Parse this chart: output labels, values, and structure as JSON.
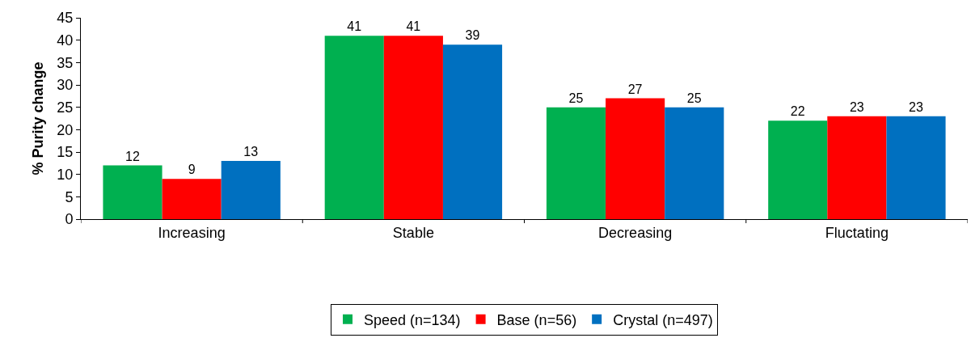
{
  "chart_data": {
    "type": "bar",
    "ylabel": "% Purity change",
    "categories": [
      "Increasing",
      "Stable",
      "Decreasing",
      "Fluctating"
    ],
    "series": [
      {
        "name": "Speed (n=134)",
        "color": "#00b050",
        "values": [
          12,
          41,
          25,
          22
        ]
      },
      {
        "name": "Base (n=56)",
        "color": "#ff0000",
        "values": [
          9,
          41,
          27,
          23
        ]
      },
      {
        "name": "Crystal (n=497)",
        "color": "#0070c0",
        "values": [
          13,
          39,
          25,
          23
        ]
      }
    ],
    "ylim": [
      0,
      45
    ],
    "yticks": [
      0,
      5,
      10,
      15,
      20,
      25,
      30,
      35,
      40,
      45
    ],
    "grid": false,
    "legend": "bottom",
    "data_labels": true
  }
}
